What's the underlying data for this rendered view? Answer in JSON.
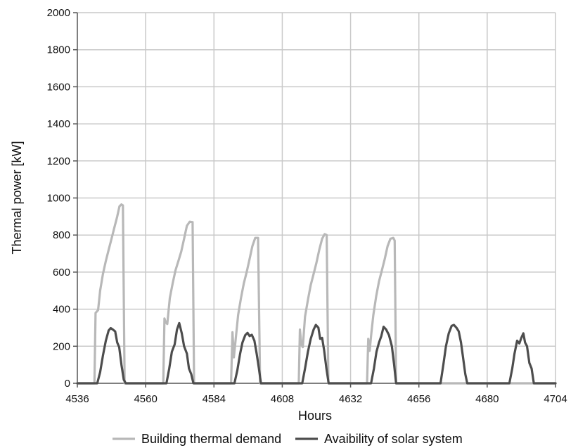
{
  "chart_data": {
    "type": "line",
    "title": "",
    "xlabel": "Hours",
    "ylabel": "Thermal power [kW]",
    "xlim": [
      4536,
      4704
    ],
    "ylim": [
      0,
      2000
    ],
    "x_ticks": [
      4536,
      4560,
      4584,
      4608,
      4632,
      4656,
      4680,
      4704
    ],
    "y_ticks": [
      0,
      200,
      400,
      600,
      800,
      1000,
      1200,
      1400,
      1600,
      1800,
      2000
    ],
    "grid": true,
    "legend_position": "bottom",
    "series": [
      {
        "name": "Building thermal demand",
        "color": "#b8b8b8",
        "points": [
          [
            4536,
            0
          ],
          [
            4542,
            0
          ],
          [
            4542.4,
            380
          ],
          [
            4543.3,
            395
          ],
          [
            4544,
            500
          ],
          [
            4545,
            590
          ],
          [
            4546,
            660
          ],
          [
            4547,
            720
          ],
          [
            4548,
            780
          ],
          [
            4549,
            840
          ],
          [
            4550,
            900
          ],
          [
            4550.8,
            955
          ],
          [
            4551.5,
            965
          ],
          [
            4552,
            960
          ],
          [
            4552.6,
            0
          ],
          [
            4566.2,
            0
          ],
          [
            4566.6,
            350
          ],
          [
            4567,
            330
          ],
          [
            4567.6,
            320
          ],
          [
            4568.5,
            460
          ],
          [
            4569.5,
            540
          ],
          [
            4570.5,
            610
          ],
          [
            4571.5,
            660
          ],
          [
            4572.5,
            710
          ],
          [
            4573.5,
            780
          ],
          [
            4574.5,
            850
          ],
          [
            4575.5,
            872
          ],
          [
            4576.5,
            870
          ],
          [
            4577,
            0
          ],
          [
            4590,
            0
          ],
          [
            4590.5,
            275
          ],
          [
            4591,
            140
          ],
          [
            4591.7,
            250
          ],
          [
            4592.5,
            370
          ],
          [
            4593.5,
            460
          ],
          [
            4594.5,
            540
          ],
          [
            4595.5,
            600
          ],
          [
            4596.5,
            670
          ],
          [
            4597.5,
            740
          ],
          [
            4598.5,
            785
          ],
          [
            4599.5,
            785
          ],
          [
            4600.2,
            0
          ],
          [
            4613.8,
            0
          ],
          [
            4614.2,
            290
          ],
          [
            4614.7,
            210
          ],
          [
            4615.2,
            195
          ],
          [
            4616,
            360
          ],
          [
            4617,
            450
          ],
          [
            4618,
            530
          ],
          [
            4619,
            590
          ],
          [
            4620,
            650
          ],
          [
            4621,
            720
          ],
          [
            4622,
            780
          ],
          [
            4622.9,
            805
          ],
          [
            4623.6,
            800
          ],
          [
            4624.2,
            0
          ],
          [
            4637.8,
            0
          ],
          [
            4638.2,
            240
          ],
          [
            4638.7,
            175
          ],
          [
            4639.3,
            270
          ],
          [
            4640,
            370
          ],
          [
            4641,
            470
          ],
          [
            4642,
            550
          ],
          [
            4643,
            610
          ],
          [
            4644,
            670
          ],
          [
            4645,
            740
          ],
          [
            4646,
            780
          ],
          [
            4647,
            785
          ],
          [
            4647.5,
            770
          ],
          [
            4648,
            0
          ],
          [
            4704,
            0
          ]
        ]
      },
      {
        "name": "Avaibility of solar system",
        "color": "#4d4d4d",
        "points": [
          [
            4536,
            0
          ],
          [
            4543,
            0
          ],
          [
            4544,
            60
          ],
          [
            4545,
            150
          ],
          [
            4546,
            230
          ],
          [
            4547,
            285
          ],
          [
            4547.7,
            298
          ],
          [
            4548.5,
            290
          ],
          [
            4549.3,
            280
          ],
          [
            4550,
            220
          ],
          [
            4550.7,
            195
          ],
          [
            4551.5,
            100
          ],
          [
            4552.3,
            20
          ],
          [
            4553,
            0
          ],
          [
            4567.3,
            0
          ],
          [
            4568.3,
            80
          ],
          [
            4569.2,
            170
          ],
          [
            4570.2,
            210
          ],
          [
            4571,
            290
          ],
          [
            4571.8,
            325
          ],
          [
            4572.7,
            270
          ],
          [
            4573.5,
            200
          ],
          [
            4574.5,
            160
          ],
          [
            4575.2,
            80
          ],
          [
            4576,
            50
          ],
          [
            4576.8,
            0
          ],
          [
            4591.2,
            0
          ],
          [
            4592.2,
            70
          ],
          [
            4593.2,
            160
          ],
          [
            4594,
            220
          ],
          [
            4595,
            260
          ],
          [
            4595.8,
            272
          ],
          [
            4596.5,
            255
          ],
          [
            4597.3,
            262
          ],
          [
            4598.2,
            230
          ],
          [
            4599,
            160
          ],
          [
            4599.8,
            80
          ],
          [
            4600.5,
            0
          ],
          [
            4615,
            0
          ],
          [
            4616,
            80
          ],
          [
            4617,
            170
          ],
          [
            4618,
            240
          ],
          [
            4619,
            290
          ],
          [
            4619.8,
            315
          ],
          [
            4620.7,
            300
          ],
          [
            4621.3,
            240
          ],
          [
            4622,
            245
          ],
          [
            4622.7,
            180
          ],
          [
            4623.5,
            80
          ],
          [
            4624.3,
            0
          ],
          [
            4639.2,
            0
          ],
          [
            4640.2,
            80
          ],
          [
            4641.1,
            170
          ],
          [
            4642,
            220
          ],
          [
            4642.8,
            255
          ],
          [
            4643.6,
            305
          ],
          [
            4644.5,
            290
          ],
          [
            4645.5,
            260
          ],
          [
            4646.5,
            200
          ],
          [
            4647.3,
            100
          ],
          [
            4648,
            0
          ],
          [
            4663.6,
            0
          ],
          [
            4664.6,
            100
          ],
          [
            4665.5,
            200
          ],
          [
            4666.5,
            270
          ],
          [
            4667.5,
            310
          ],
          [
            4668.3,
            315
          ],
          [
            4669.2,
            300
          ],
          [
            4670,
            280
          ],
          [
            4670.8,
            220
          ],
          [
            4671.5,
            140
          ],
          [
            4672.3,
            50
          ],
          [
            4673,
            0
          ],
          [
            4687.8,
            0
          ],
          [
            4688.8,
            80
          ],
          [
            4689.6,
            160
          ],
          [
            4690.5,
            230
          ],
          [
            4691.3,
            215
          ],
          [
            4692,
            245
          ],
          [
            4692.7,
            270
          ],
          [
            4693.3,
            220
          ],
          [
            4694,
            200
          ],
          [
            4694.8,
            110
          ],
          [
            4695.6,
            80
          ],
          [
            4696.4,
            0
          ],
          [
            4704,
            0
          ]
        ]
      }
    ]
  }
}
